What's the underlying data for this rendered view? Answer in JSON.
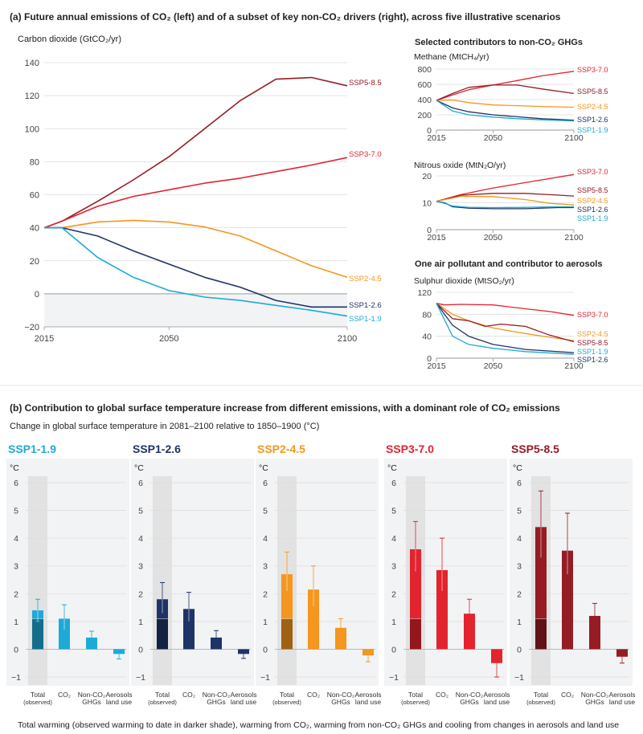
{
  "panel_a": {
    "title": "(a) Future annual emissions of CO₂ (left) and of a subset of key non-CO₂ drivers (right), across five illustrative scenarios",
    "right_header": "Selected contributors to non-CO₂ GHGs",
    "aerosol_header": "One air pollutant and contributor to aerosols"
  },
  "panel_b": {
    "title": "(b) Contribution to global surface temperature increase from different emissions, with a dominant role of CO₂ emissions",
    "subtitle": "Change in global surface temperature in 2081–2100 relative to 1850–1900 (°C)",
    "footer": "Total warming (observed warming to date in darker shade), warming from CO₂, warming from non-CO₂ GHGs and cooling from changes in aerosols and land use"
  },
  "colors": {
    "SSP1-1.9": "#1eaad7",
    "SSP1-2.6": "#1e3466",
    "SSP2-4.5": "#f5961e",
    "SSP3-7.0": "#e3232e",
    "SSP5-8.5": "#961c24"
  },
  "chart_data": [
    {
      "type": "line",
      "id": "co2",
      "ylabel": "Carbon dioxide (GtCO₂/yr)",
      "xlim": [
        2015,
        2100
      ],
      "ylim": [
        -20,
        140
      ],
      "xticks": [
        2015,
        2050,
        2100
      ],
      "yticks": [
        140,
        120,
        100,
        80,
        60,
        40,
        20,
        0,
        -20
      ],
      "series": [
        {
          "name": "SSP5-8.5",
          "x": [
            2015,
            2020,
            2030,
            2040,
            2050,
            2060,
            2070,
            2080,
            2090,
            2100
          ],
          "y": [
            40,
            44,
            56,
            69,
            83,
            100,
            117,
            130,
            131,
            126
          ]
        },
        {
          "name": "SSP3-7.0",
          "x": [
            2015,
            2020,
            2030,
            2040,
            2050,
            2060,
            2070,
            2080,
            2090,
            2100
          ],
          "y": [
            40,
            44,
            53,
            59,
            63,
            67,
            70,
            74,
            78,
            82.5
          ]
        },
        {
          "name": "SSP2-4.5",
          "x": [
            2015,
            2020,
            2030,
            2040,
            2050,
            2060,
            2070,
            2080,
            2090,
            2100
          ],
          "y": [
            40,
            40,
            43.5,
            44.5,
            43.5,
            40.5,
            35,
            26,
            17,
            10
          ]
        },
        {
          "name": "SSP1-2.6",
          "x": [
            2015,
            2020,
            2030,
            2040,
            2050,
            2060,
            2070,
            2080,
            2090,
            2100
          ],
          "y": [
            40,
            40,
            35,
            26,
            18,
            10,
            4,
            -4,
            -8,
            -8
          ]
        },
        {
          "name": "SSP1-1.9",
          "x": [
            2015,
            2020,
            2030,
            2040,
            2050,
            2060,
            2070,
            2080,
            2090,
            2100
          ],
          "y": [
            40,
            40,
            22,
            10,
            2,
            -2,
            -4,
            -7,
            -10,
            -13.5
          ]
        }
      ]
    },
    {
      "type": "line",
      "id": "methane",
      "ylabel": "Methane (MtCH₄/yr)",
      "xlim": [
        2015,
        2100
      ],
      "ylim": [
        0,
        800
      ],
      "xticks": [
        2015,
        2050,
        2100
      ],
      "yticks": [
        800,
        600,
        400,
        200,
        0
      ],
      "series": [
        {
          "name": "SSP3-7.0",
          "x": [
            2015,
            2025,
            2035,
            2050,
            2065,
            2080,
            2100
          ],
          "y": [
            390,
            460,
            530,
            590,
            650,
            710,
            770
          ]
        },
        {
          "name": "SSP5-8.5",
          "x": [
            2015,
            2025,
            2035,
            2050,
            2065,
            2080,
            2100
          ],
          "y": [
            390,
            480,
            560,
            590,
            590,
            540,
            480
          ]
        },
        {
          "name": "SSP2-4.5",
          "x": [
            2015,
            2025,
            2035,
            2050,
            2065,
            2080,
            2100
          ],
          "y": [
            390,
            395,
            360,
            330,
            320,
            310,
            300
          ]
        },
        {
          "name": "SSP1-2.6",
          "x": [
            2015,
            2025,
            2035,
            2050,
            2065,
            2080,
            2100
          ],
          "y": [
            390,
            290,
            240,
            200,
            175,
            150,
            130
          ]
        },
        {
          "name": "SSP1-1.9",
          "x": [
            2015,
            2025,
            2035,
            2050,
            2065,
            2080,
            2100
          ],
          "y": [
            390,
            250,
            200,
            170,
            150,
            135,
            120
          ]
        }
      ]
    },
    {
      "type": "line",
      "id": "n2o",
      "ylabel": "Nitrous oxide (MtN₂O/yr)",
      "xlim": [
        2015,
        2100
      ],
      "ylim": [
        0,
        20
      ],
      "xticks": [
        2015,
        2050,
        2100
      ],
      "yticks": [
        20,
        10,
        0
      ],
      "series": [
        {
          "name": "SSP3-7.0",
          "x": [
            2015,
            2030,
            2050,
            2070,
            2100
          ],
          "y": [
            10.5,
            13,
            15.5,
            17.5,
            20.5
          ]
        },
        {
          "name": "SSP5-8.5",
          "x": [
            2015,
            2030,
            2050,
            2070,
            2085,
            2100
          ],
          "y": [
            10.5,
            12.8,
            13.5,
            13.5,
            13,
            12.5
          ]
        },
        {
          "name": "SSP2-4.5",
          "x": [
            2015,
            2030,
            2050,
            2070,
            2085,
            2100
          ],
          "y": [
            10.5,
            12.4,
            12.3,
            11.2,
            9.8,
            9.2
          ]
        },
        {
          "name": "SSP1-2.6",
          "x": [
            2015,
            2020,
            2025,
            2035,
            2050,
            2070,
            2090,
            2100
          ],
          "y": [
            10.5,
            10,
            8.5,
            8,
            7.8,
            7.8,
            8.2,
            8.2
          ]
        },
        {
          "name": "SSP1-1.9",
          "x": [
            2015,
            2020,
            2025,
            2035,
            2050,
            2070,
            2090,
            2100
          ],
          "y": [
            10.5,
            9.8,
            8.8,
            8.3,
            8.2,
            8.3,
            8.5,
            8.5
          ]
        }
      ]
    },
    {
      "type": "line",
      "id": "so2",
      "ylabel": "Sulphur dioxide (MtSO₂/yr)",
      "xlim": [
        2015,
        2100
      ],
      "ylim": [
        0,
        120
      ],
      "xticks": [
        2015,
        2050,
        2100
      ],
      "yticks": [
        120,
        80,
        40,
        0
      ],
      "series": [
        {
          "name": "SSP3-7.0",
          "x": [
            2015,
            2020,
            2030,
            2050,
            2070,
            2085,
            2100
          ],
          "y": [
            100,
            97,
            98,
            97,
            90,
            85,
            78
          ]
        },
        {
          "name": "SSP2-4.5",
          "x": [
            2015,
            2025,
            2035,
            2050,
            2070,
            2085,
            2100
          ],
          "y": [
            100,
            80,
            68,
            55,
            45,
            38,
            32
          ]
        },
        {
          "name": "SSP5-8.5",
          "x": [
            2015,
            2025,
            2035,
            2045,
            2055,
            2070,
            2085,
            2100
          ],
          "y": [
            100,
            72,
            68,
            58,
            62,
            58,
            42,
            30
          ]
        },
        {
          "name": "SSP1-2.6",
          "x": [
            2015,
            2025,
            2035,
            2050,
            2070,
            2100
          ],
          "y": [
            100,
            60,
            40,
            25,
            16,
            10
          ]
        },
        {
          "name": "SSP1-1.9",
          "x": [
            2015,
            2025,
            2035,
            2050,
            2070,
            2100
          ],
          "y": [
            100,
            40,
            25,
            18,
            12,
            7
          ]
        }
      ]
    },
    {
      "type": "bar",
      "id": "temperature",
      "unit": "°C",
      "categories": [
        "Total (observed)",
        "CO₂",
        "Non-CO₂ GHGs",
        "Aerosols land use"
      ],
      "ylim": [
        -1,
        6
      ],
      "yticks": [
        6,
        5,
        4,
        3,
        2,
        1,
        0,
        -1
      ],
      "observed": 1.1,
      "panels": [
        {
          "name": "SSP1-1.9",
          "values": [
            1.4,
            1.1,
            0.42,
            -0.17
          ],
          "low": [
            1.0,
            0.7,
            0.25,
            -0.35
          ],
          "high": [
            1.8,
            1.6,
            0.65,
            -0.05
          ]
        },
        {
          "name": "SSP1-2.6",
          "values": [
            1.8,
            1.45,
            0.42,
            -0.17
          ],
          "low": [
            1.3,
            1.0,
            0.25,
            -0.33
          ],
          "high": [
            2.4,
            2.05,
            0.67,
            -0.05
          ]
        },
        {
          "name": "SSP2-4.5",
          "values": [
            2.7,
            2.15,
            0.77,
            -0.22
          ],
          "low": [
            2.1,
            1.55,
            0.5,
            -0.45
          ],
          "high": [
            3.5,
            3.0,
            1.1,
            -0.05
          ]
        },
        {
          "name": "SSP3-7.0",
          "values": [
            3.6,
            2.85,
            1.28,
            -0.5
          ],
          "low": [
            2.8,
            2.1,
            0.9,
            -1.0
          ],
          "high": [
            4.6,
            4.0,
            1.8,
            -0.05
          ]
        },
        {
          "name": "SSP5-8.5",
          "values": [
            4.4,
            3.55,
            1.2,
            -0.27
          ],
          "low": [
            3.3,
            2.7,
            0.85,
            -0.5
          ],
          "high": [
            5.7,
            4.9,
            1.65,
            -0.1
          ]
        }
      ]
    }
  ]
}
